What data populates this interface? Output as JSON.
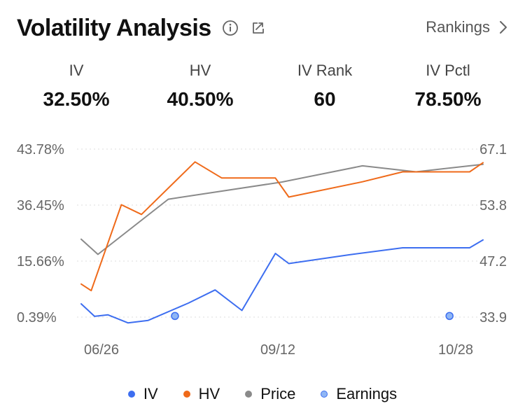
{
  "header": {
    "title": "Volatility Analysis",
    "rankings_label": "Rankings"
  },
  "icons": {
    "info": "info-icon",
    "share": "share-icon",
    "chevron": "chevron-right-icon"
  },
  "stats": [
    {
      "label": "IV",
      "value": "32.50%"
    },
    {
      "label": "HV",
      "value": "40.50%"
    },
    {
      "label": "IV Rank",
      "value": "60"
    },
    {
      "label": "IV Pctl",
      "value": "78.50%"
    }
  ],
  "colors": {
    "iv": "#3d6ef0",
    "hv": "#ef6a1a",
    "price": "#8a8a8a",
    "earnings_fill": "#8fb6f5",
    "earnings_stroke": "#3d6ef0",
    "grid": "#dddddd",
    "axis_text": "#666666"
  },
  "chart_data": {
    "type": "line",
    "left_axis": {
      "ticks": [
        "43.78%",
        "36.45%",
        "15.66%",
        "0.39%"
      ]
    },
    "right_axis": {
      "ticks": [
        "67.1",
        "53.8",
        "47.2",
        "33.9"
      ],
      "ylim": [
        33.9,
        67.1
      ]
    },
    "x_labels": [
      "06/26",
      "09/12",
      "10/28"
    ],
    "legend": [
      "IV",
      "HV",
      "Price",
      "Earnings"
    ],
    "grid": true,
    "series": [
      {
        "name": "IV",
        "key": "iv",
        "axis": "left",
        "points": [
          [
            0,
            4
          ],
          [
            2,
            0.6
          ],
          [
            4,
            1.0
          ],
          [
            7,
            -1.2
          ],
          [
            10,
            -0.5
          ],
          [
            16,
            4.2
          ],
          [
            20,
            7.8
          ],
          [
            24,
            2.2
          ],
          [
            29,
            18.5
          ],
          [
            31,
            15.0
          ],
          [
            40,
            18.0
          ],
          [
            48,
            20.6
          ],
          [
            53,
            20.6
          ],
          [
            58,
            20.6
          ],
          [
            60,
            23.5
          ]
        ]
      },
      {
        "name": "HV",
        "key": "hv",
        "axis": "left",
        "points": [
          [
            0,
            9.4
          ],
          [
            1.5,
            7.6
          ],
          [
            6,
            36.5
          ],
          [
            9,
            33.0
          ],
          [
            17,
            42.1
          ],
          [
            21,
            40.0
          ],
          [
            29,
            40.0
          ],
          [
            31,
            37.5
          ],
          [
            42,
            39.5
          ],
          [
            48,
            40.8
          ],
          [
            58,
            40.8
          ],
          [
            60,
            42.0
          ]
        ]
      },
      {
        "name": "Price",
        "key": "price",
        "axis": "right",
        "points": [
          [
            0,
            49.3
          ],
          [
            2.5,
            46.3
          ],
          [
            13,
            57.2
          ],
          [
            30,
            60.6
          ],
          [
            42,
            63.8
          ],
          [
            50,
            62.6
          ],
          [
            60,
            64.1
          ]
        ]
      }
    ],
    "earnings": [
      {
        "x": 14
      },
      {
        "x": 55
      }
    ],
    "earnings_value": 0.7
  }
}
